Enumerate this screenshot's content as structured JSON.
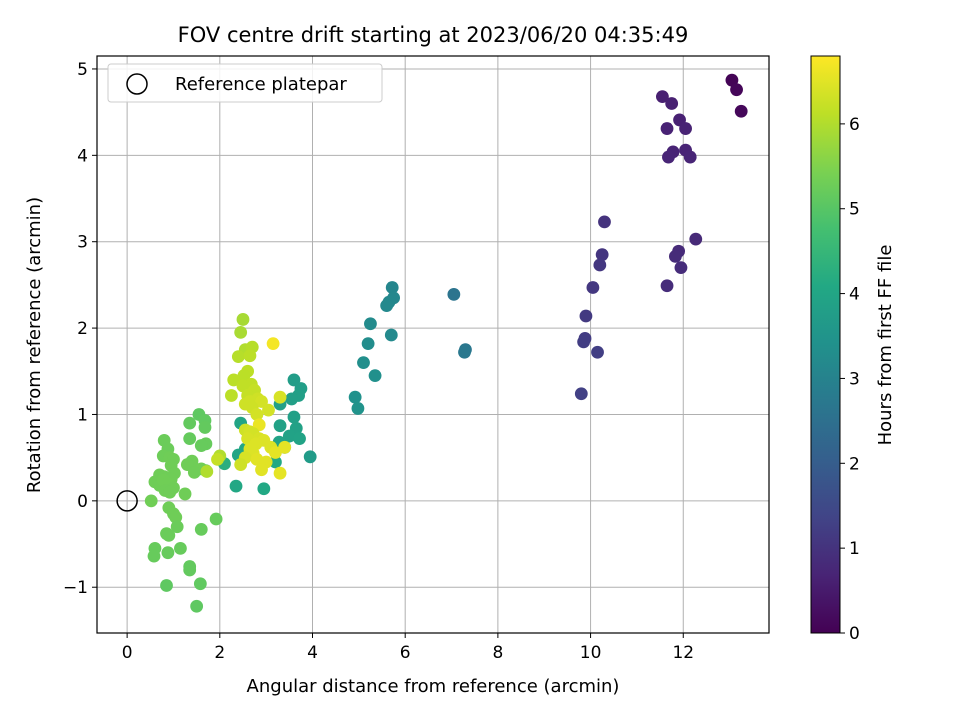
{
  "chart_data": {
    "type": "scatter",
    "title": "FOV centre drift starting at 2023/06/20 04:35:49",
    "xlabel": "Angular distance from reference (arcmin)",
    "ylabel": "Rotation from reference (arcmin)",
    "xlim": [
      -0.65,
      13.85
    ],
    "ylim": [
      -1.53,
      5.15
    ],
    "xticks": [
      0,
      2,
      4,
      6,
      8,
      10,
      12
    ],
    "yticks": [
      -1,
      0,
      1,
      2,
      3,
      4,
      5
    ],
    "grid": true,
    "legend": {
      "placement": "top-left",
      "entries": [
        "Reference platepar"
      ]
    },
    "reference_point": {
      "x": 0,
      "y": 0,
      "marker": "open-circle"
    },
    "colorbar": {
      "label": "Hours from first FF file",
      "colormap": "viridis",
      "range": [
        0,
        6.8
      ],
      "ticks": [
        0,
        1,
        2,
        3,
        4,
        5,
        6
      ]
    },
    "points": [
      [
        13.05,
        4.87,
        0.05
      ],
      [
        13.15,
        4.76,
        0.1
      ],
      [
        13.25,
        4.51,
        0.12
      ],
      [
        11.55,
        4.68,
        0.6
      ],
      [
        11.75,
        4.6,
        0.62
      ],
      [
        11.65,
        4.31,
        0.65
      ],
      [
        11.92,
        4.41,
        0.63
      ],
      [
        12.05,
        4.31,
        0.66
      ],
      [
        11.78,
        4.04,
        0.68
      ],
      [
        11.68,
        3.98,
        0.7
      ],
      [
        12.05,
        4.06,
        0.69
      ],
      [
        12.15,
        3.98,
        0.71
      ],
      [
        12.27,
        3.03,
        0.8
      ],
      [
        11.9,
        2.89,
        0.82
      ],
      [
        11.83,
        2.83,
        0.84
      ],
      [
        11.95,
        2.7,
        0.85
      ],
      [
        11.65,
        2.49,
        0.86
      ],
      [
        10.3,
        3.23,
        1.0
      ],
      [
        10.25,
        2.85,
        1.05
      ],
      [
        10.2,
        2.73,
        1.08
      ],
      [
        10.05,
        2.47,
        1.1
      ],
      [
        9.9,
        2.14,
        1.15
      ],
      [
        9.88,
        1.88,
        1.2
      ],
      [
        9.85,
        1.84,
        1.22
      ],
      [
        10.15,
        1.72,
        1.25
      ],
      [
        9.8,
        1.24,
        1.3
      ],
      [
        7.05,
        2.39,
        2.6
      ],
      [
        7.3,
        1.75,
        2.7
      ],
      [
        7.28,
        1.72,
        2.72
      ],
      [
        5.72,
        2.47,
        3.1
      ],
      [
        5.75,
        2.35,
        3.12
      ],
      [
        5.65,
        2.3,
        3.15
      ],
      [
        5.6,
        2.26,
        3.17
      ],
      [
        5.25,
        2.05,
        3.25
      ],
      [
        5.2,
        1.82,
        3.3
      ],
      [
        5.7,
        1.92,
        3.2
      ],
      [
        5.1,
        1.6,
        3.35
      ],
      [
        5.35,
        1.45,
        3.38
      ],
      [
        4.92,
        1.2,
        3.42
      ],
      [
        4.98,
        1.07,
        3.45
      ],
      [
        3.95,
        0.51,
        3.7
      ],
      [
        3.6,
        1.4,
        3.75
      ],
      [
        3.75,
        1.3,
        3.78
      ],
      [
        3.7,
        1.22,
        3.8
      ],
      [
        3.55,
        1.18,
        3.82
      ],
      [
        3.3,
        1.12,
        3.85
      ],
      [
        3.6,
        0.97,
        3.85
      ],
      [
        3.3,
        0.87,
        3.87
      ],
      [
        3.65,
        0.84,
        3.88
      ],
      [
        3.5,
        0.75,
        3.9
      ],
      [
        3.72,
        0.72,
        3.92
      ],
      [
        3.28,
        0.68,
        3.93
      ],
      [
        3.4,
        0.62,
        3.95
      ],
      [
        2.45,
        0.9,
        3.97
      ],
      [
        2.4,
        0.53,
        4.0
      ],
      [
        2.55,
        0.6,
        4.02
      ],
      [
        2.35,
        0.17,
        4.05
      ],
      [
        2.95,
        0.14,
        4.07
      ],
      [
        3.2,
        0.45,
        4.08
      ],
      [
        2.1,
        0.43,
        4.25
      ],
      [
        1.55,
        1.0,
        5.1
      ],
      [
        1.68,
        0.93,
        5.12
      ],
      [
        1.35,
        0.9,
        5.15
      ],
      [
        1.68,
        0.85,
        5.15
      ],
      [
        1.35,
        0.72,
        5.18
      ],
      [
        1.7,
        0.66,
        5.2
      ],
      [
        1.6,
        0.64,
        5.2
      ],
      [
        0.8,
        0.7,
        5.25
      ],
      [
        0.88,
        0.6,
        5.25
      ],
      [
        0.78,
        0.52,
        5.28
      ],
      [
        0.92,
        0.5,
        5.3
      ],
      [
        1.0,
        0.48,
        5.3
      ],
      [
        1.4,
        0.46,
        5.3
      ],
      [
        1.3,
        0.42,
        5.3
      ],
      [
        1.6,
        0.37,
        5.32
      ],
      [
        1.7,
        0.35,
        5.3
      ],
      [
        1.45,
        0.33,
        5.3
      ],
      [
        0.95,
        0.41,
        5.3
      ],
      [
        0.7,
        0.3,
        5.3
      ],
      [
        0.8,
        0.28,
        5.3
      ],
      [
        1.02,
        0.32,
        5.3
      ],
      [
        0.95,
        0.25,
        5.3
      ],
      [
        0.6,
        0.22,
        5.3
      ],
      [
        0.7,
        0.18,
        5.3
      ],
      [
        0.78,
        0.24,
        5.32
      ],
      [
        0.88,
        0.2,
        5.32
      ],
      [
        1.0,
        0.15,
        5.3
      ],
      [
        0.82,
        0.12,
        5.3
      ],
      [
        0.92,
        0.1,
        5.3
      ],
      [
        1.25,
        0.08,
        5.3
      ],
      [
        0.52,
        0.0,
        5.32
      ],
      [
        0.9,
        -0.08,
        5.3
      ],
      [
        1.0,
        -0.15,
        5.3
      ],
      [
        1.05,
        -0.19,
        5.3
      ],
      [
        1.08,
        -0.3,
        5.25
      ],
      [
        0.85,
        -0.38,
        5.25
      ],
      [
        0.9,
        -0.4,
        5.25
      ],
      [
        1.92,
        -0.21,
        5.2
      ],
      [
        1.6,
        -0.33,
        5.2
      ],
      [
        0.6,
        -0.55,
        5.2
      ],
      [
        1.15,
        -0.55,
        5.2
      ],
      [
        0.88,
        -0.6,
        5.2
      ],
      [
        0.58,
        -0.64,
        5.2
      ],
      [
        1.35,
        -0.76,
        5.15
      ],
      [
        1.35,
        -0.8,
        5.15
      ],
      [
        1.58,
        -0.96,
        5.12
      ],
      [
        0.85,
        -0.98,
        5.1
      ],
      [
        1.5,
        -1.22,
        5.1
      ],
      [
        2.5,
        2.1,
        5.9
      ],
      [
        2.45,
        1.95,
        5.92
      ],
      [
        2.55,
        1.75,
        6.0
      ],
      [
        2.7,
        1.78,
        6.05
      ],
      [
        2.4,
        1.67,
        6.05
      ],
      [
        2.65,
        1.68,
        6.1
      ],
      [
        2.6,
        1.5,
        6.12
      ],
      [
        2.52,
        1.45,
        6.1
      ],
      [
        2.3,
        1.4,
        6.1
      ],
      [
        2.68,
        1.35,
        6.15
      ],
      [
        2.5,
        1.33,
        6.15
      ],
      [
        2.75,
        1.28,
        6.2
      ],
      [
        2.25,
        1.22,
        6.1
      ],
      [
        2.6,
        1.22,
        6.2
      ],
      [
        2.82,
        1.18,
        6.3
      ],
      [
        2.65,
        1.15,
        6.3
      ],
      [
        2.9,
        1.15,
        6.35
      ],
      [
        2.55,
        1.12,
        6.3
      ],
      [
        2.7,
        1.08,
        6.3
      ],
      [
        2.8,
        1.0,
        6.35
      ],
      [
        3.3,
        1.2,
        6.4
      ],
      [
        3.05,
        1.05,
        6.35
      ],
      [
        2.55,
        0.82,
        6.3
      ],
      [
        2.65,
        0.8,
        6.35
      ],
      [
        2.85,
        0.88,
        6.6
      ],
      [
        2.72,
        0.78,
        6.35
      ],
      [
        2.6,
        0.72,
        6.4
      ],
      [
        2.85,
        0.72,
        6.4
      ],
      [
        2.95,
        0.7,
        6.45
      ],
      [
        2.78,
        0.66,
        6.45
      ],
      [
        3.1,
        0.62,
        6.45
      ],
      [
        2.65,
        0.6,
        6.45
      ],
      [
        2.72,
        0.55,
        6.45
      ],
      [
        2.55,
        0.5,
        6.4
      ],
      [
        2.8,
        0.48,
        6.5
      ],
      [
        3.0,
        0.45,
        6.5
      ],
      [
        2.45,
        0.42,
        6.3
      ],
      [
        3.2,
        0.56,
        6.55
      ],
      [
        3.4,
        0.62,
        6.55
      ],
      [
        2.9,
        0.36,
        6.5
      ],
      [
        3.3,
        0.32,
        6.55
      ],
      [
        3.15,
        1.82,
        6.7
      ],
      [
        2.0,
        0.52,
        6.0
      ],
      [
        1.95,
        0.48,
        6.2
      ],
      [
        1.72,
        0.34,
        6.0
      ]
    ]
  }
}
